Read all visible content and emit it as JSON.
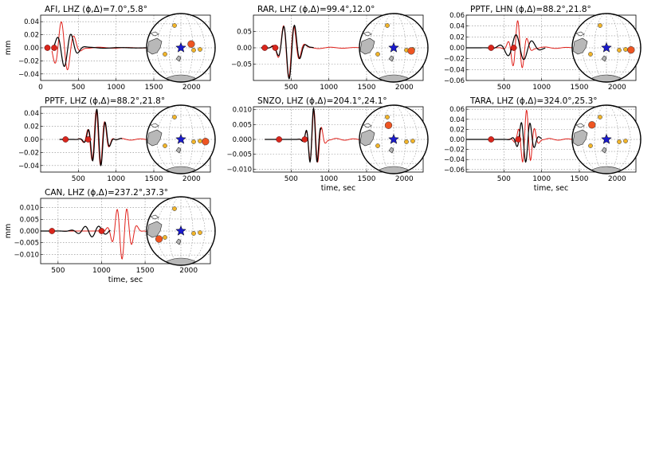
{
  "colors": {
    "observed": "#000000",
    "synthetic": "#e0201a",
    "marker": "#d9261c",
    "event_star": "#1a1acc",
    "station_primary": "#ee5522",
    "station_other": "#f2b52a",
    "land": "#b8b8b8"
  },
  "chart_data": [
    {
      "type": "line",
      "title": "AFI, LHZ (ϕ,Δ)=7.0°,5.8°",
      "xlabel": "",
      "ylabel": "mm",
      "xlim": [
        0,
        2250
      ],
      "ylim": [
        -0.05,
        0.05
      ],
      "xticks": [
        "0",
        "500",
        "1000",
        "1500",
        "2000"
      ],
      "xtick_values": [
        0,
        500,
        1000,
        1500,
        2000
      ],
      "yticks": [
        "0.04",
        "0.02",
        "0.00",
        "−0.02",
        "−0.04"
      ],
      "ytick_values": [
        0.04,
        0.02,
        0.0,
        -0.02,
        -0.04
      ],
      "markers_x": [
        90,
        180
      ],
      "observed": {
        "t0": 150,
        "t1": 1800,
        "center": 330,
        "period": 190,
        "amp": -0.029,
        "width": 140,
        "phase": 0.6
      },
      "synthetic": {
        "t0": 150,
        "t1": 1800,
        "center": 300,
        "period": 175,
        "amp": 0.041,
        "width": 150,
        "phase": 1.0
      },
      "inset": {
        "station_angle": 20,
        "station_r": 0.16
      }
    },
    {
      "type": "line",
      "title": "RAR, LHZ (ϕ,Δ)=99.4°,12.0°",
      "xlabel": "",
      "ylabel": "",
      "xlim": [
        0,
        2250
      ],
      "ylim": [
        -0.1,
        0.1
      ],
      "xticks": [
        "500",
        "1000",
        "1500",
        "2000"
      ],
      "xtick_values": [
        500,
        1000,
        1500,
        2000
      ],
      "yticks": [
        "0.05",
        "0.00",
        "−0.05"
      ],
      "ytick_values": [
        0.05,
        0.0,
        -0.05
      ],
      "markers_x": [
        150,
        290
      ],
      "observed": {
        "t0": 100,
        "t1": 800,
        "center": 480,
        "period": 150,
        "amp": -0.095,
        "width": 130,
        "phase": 0.3
      },
      "synthetic": {
        "t0": 100,
        "t1": 1820,
        "center": 470,
        "period": 145,
        "amp": -0.09,
        "width": 135,
        "phase": 0.1
      },
      "inset": {
        "station_angle": -10,
        "station_r": 0.26
      }
    },
    {
      "type": "line",
      "title": "PPTF, LHN (ϕ,Δ)=88.2°,21.8°",
      "xlabel": "",
      "ylabel": "",
      "xlim": [
        0,
        2250
      ],
      "ylim": [
        -0.06,
        0.06
      ],
      "xticks": [
        "500",
        "1000",
        "1500",
        "2000"
      ],
      "xtick_values": [
        500,
        1000,
        1500,
        2000
      ],
      "yticks": [
        "0.06",
        "0.04",
        "0.02",
        "0.00",
        "−0.02",
        "−0.04",
        "−0.06"
      ],
      "ytick_values": [
        0.06,
        0.04,
        0.02,
        0.0,
        -0.02,
        -0.04,
        -0.06
      ],
      "markers_x": [
        330,
        630
      ],
      "observed": {
        "t0": 0,
        "t1": 1050,
        "center": 700,
        "period": 220,
        "amp": 0.025,
        "width": 200,
        "phase": 1.2
      },
      "synthetic": {
        "t0": 0,
        "t1": 1820,
        "center": 690,
        "period": 130,
        "amp": 0.05,
        "width": 110,
        "phase": 0.4
      },
      "inset": {
        "station_angle": -5,
        "station_r": 0.36
      }
    },
    {
      "type": "line",
      "title": "PPTF, LHZ (ϕ,Δ)=88.2°,21.8°",
      "xlabel": "",
      "ylabel": "",
      "xlim": [
        0,
        2250
      ],
      "ylim": [
        -0.05,
        0.05
      ],
      "xticks": [
        "500",
        "1000",
        "1500",
        "2000"
      ],
      "xtick_values": [
        500,
        1000,
        1500,
        2000
      ],
      "yticks": [
        "0.04",
        "0.02",
        "0.00",
        "−0.02",
        "−0.04"
      ],
      "ytick_values": [
        0.04,
        0.02,
        0.0,
        -0.02,
        -0.04
      ],
      "markers_x": [
        330,
        630
      ],
      "observed": {
        "t0": 250,
        "t1": 1080,
        "center": 760,
        "period": 115,
        "amp": 0.047,
        "width": 120,
        "phase": 0.9
      },
      "synthetic": {
        "t0": 250,
        "t1": 1820,
        "center": 755,
        "period": 115,
        "amp": 0.045,
        "width": 125,
        "phase": 1.0
      },
      "inset": {
        "station_angle": -5,
        "station_r": 0.36
      }
    },
    {
      "type": "line",
      "title": "SNZO, LHZ (ϕ,Δ)=204.1°,24.1°",
      "xlabel": "time, sec",
      "ylabel": "",
      "xlim": [
        0,
        2250
      ],
      "ylim": [
        -0.011,
        0.011
      ],
      "xticks": [
        "500",
        "1000",
        "1500",
        "2000"
      ],
      "xtick_values": [
        500,
        1000,
        1500,
        2000
      ],
      "yticks": [
        "0.010",
        "0.005",
        "0.000",
        "−0.005",
        "−0.010"
      ],
      "ytick_values": [
        0.01,
        0.005,
        0.0,
        -0.005,
        -0.01
      ],
      "markers_x": [
        340,
        680
      ],
      "observed": {
        "t0": 150,
        "t1": 900,
        "center": 800,
        "period": 100,
        "amp": 0.0105,
        "width": 90,
        "phase": 0.2
      },
      "synthetic": {
        "t0": 150,
        "t1": 1820,
        "center": 810,
        "period": 105,
        "amp": 0.01,
        "width": 95,
        "phase": 0.5
      },
      "inset": {
        "station_angle": 110,
        "station_r": 0.22
      }
    },
    {
      "type": "line",
      "title": "TARA, LHZ (ϕ,Δ)=324.0°,25.3°",
      "xlabel": "time, sec",
      "ylabel": "",
      "xlim": [
        0,
        2250
      ],
      "ylim": [
        -0.065,
        0.065
      ],
      "xticks": [
        "500",
        "1000",
        "1500",
        "2000"
      ],
      "xtick_values": [
        500,
        1000,
        1500,
        2000
      ],
      "yticks": [
        "0.06",
        "0.04",
        "0.02",
        "0.00",
        "−0.02",
        "−0.04",
        "−0.06"
      ],
      "ytick_values": [
        0.06,
        0.04,
        0.02,
        0.0,
        -0.02,
        -0.04,
        -0.06
      ],
      "markers_x": [
        330,
        690
      ],
      "observed": {
        "t0": 0,
        "t1": 1000,
        "center": 790,
        "period": 120,
        "amp": -0.045,
        "width": 110,
        "phase": 0.1
      },
      "synthetic": {
        "t0": 0,
        "t1": 1820,
        "center": 800,
        "period": 110,
        "amp": 0.058,
        "width": 105,
        "phase": 0.0
      },
      "inset": {
        "station_angle": 135,
        "station_r": 0.3
      }
    },
    {
      "type": "line",
      "title": "CAN, LHZ (ϕ,Δ)=237.2°,37.3°",
      "xlabel": "time, sec",
      "ylabel": "mm",
      "xlim": [
        300,
        2250
      ],
      "ylim": [
        -0.014,
        0.014
      ],
      "xticks": [
        "500",
        "1000",
        "1500",
        "2000"
      ],
      "xtick_values": [
        500,
        1000,
        1500,
        2000
      ],
      "yticks": [
        "0.010",
        "0.005",
        "0.000",
        "−0.005",
        "−0.010"
      ],
      "ytick_values": [
        0.01,
        0.005,
        0.0,
        -0.005,
        -0.01
      ],
      "markers_x": [
        430,
        1000
      ],
      "observed": {
        "t0": 300,
        "t1": 1100,
        "center": 900,
        "period": 160,
        "amp": -0.0025,
        "width": 180,
        "phase": 0.4
      },
      "synthetic": {
        "t0": 300,
        "t1": 1820,
        "center": 1240,
        "period": 115,
        "amp": -0.012,
        "width": 120,
        "phase": 0.3
      },
      "inset": {
        "station_angle": 200,
        "station_r": 0.34
      }
    }
  ]
}
